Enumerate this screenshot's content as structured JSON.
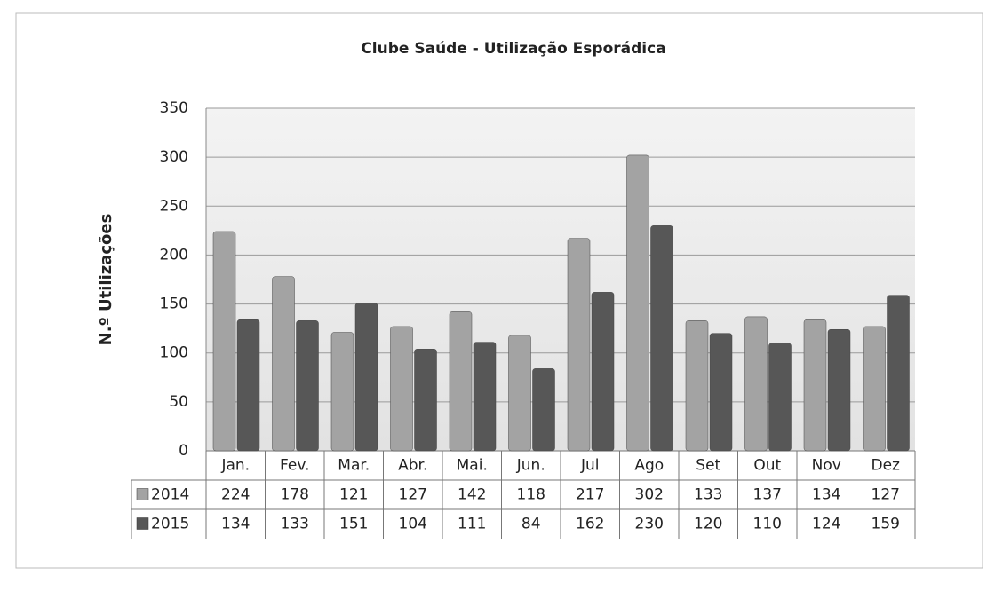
{
  "chart_data": {
    "type": "bar",
    "title": "Clube Saúde  - Utilização Esporádica",
    "y_label": "N.º Utilizações",
    "categories": [
      "Jan.",
      "Fev.",
      "Mar.",
      "Abr.",
      "Mai.",
      "Jun.",
      "Jul",
      "Ago",
      "Set",
      "Out",
      "Nov",
      "Dez"
    ],
    "series": [
      {
        "name": "2014",
        "color": "#a3a3a3",
        "values": [
          224,
          178,
          121,
          127,
          142,
          118,
          217,
          302,
          133,
          137,
          134,
          127
        ]
      },
      {
        "name": "2015",
        "color": "#575757",
        "values": [
          134,
          133,
          151,
          104,
          111,
          84,
          162,
          230,
          120,
          110,
          124,
          159
        ]
      }
    ],
    "ylim": [
      0,
      350
    ],
    "yticks": [
      0,
      50,
      100,
      150,
      200,
      250,
      300,
      350
    ],
    "grid": true
  }
}
